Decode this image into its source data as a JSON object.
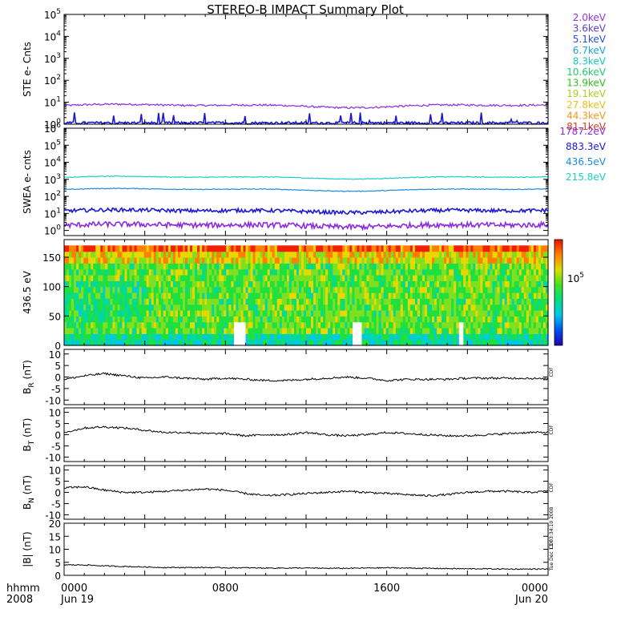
{
  "title": "STEREO-B IMPACT Summary Plot",
  "footer": {
    "hhmm": "hhmm",
    "year": "2008"
  },
  "stamp": "Tue Dec 13 03:34:10 2008",
  "side_labels": [
    "CDF",
    "CDF",
    "CDF",
    "CDF"
  ],
  "colorbar": {
    "label": "10",
    "label_exp": "5"
  },
  "legend_ste": [
    {
      "text": "2.0keV",
      "color": "#9b30d8"
    },
    {
      "text": "3.6keV",
      "color": "#5a3fd0"
    },
    {
      "text": "5.1keV",
      "color": "#2850e0"
    },
    {
      "text": "6.7keV",
      "color": "#1aa0dc"
    },
    {
      "text": "8.3keV",
      "color": "#18c8c0"
    },
    {
      "text": "10.6keV",
      "color": "#20c870"
    },
    {
      "text": "13.9keV",
      "color": "#30c020"
    },
    {
      "text": "19.1keV",
      "color": "#a8d018"
    },
    {
      "text": "27.8keV",
      "color": "#e8c020"
    },
    {
      "text": "44.3keV",
      "color": "#f09818"
    },
    {
      "text": "81.1keV",
      "color": "#e03818"
    }
  ],
  "legend_swea": [
    {
      "text": "1787.2eV",
      "color": "#8a2be2"
    },
    {
      "text": "883.3eV",
      "color": "#1818d8"
    },
    {
      "text": "436.5eV",
      "color": "#1a8ae0"
    },
    {
      "text": "215.8eV",
      "color": "#18d0c8"
    }
  ],
  "chart_data": [
    {
      "type": "line",
      "panel": "STE",
      "ylabel": "STE e- Cnts",
      "yscale": "log",
      "ylim": [
        1,
        100000
      ],
      "yticks": [
        {
          "base": "10",
          "exp": "0",
          "v": 1
        },
        {
          "base": "10",
          "exp": "1",
          "v": 10
        },
        {
          "base": "10",
          "exp": "2",
          "v": 100
        },
        {
          "base": "10",
          "exp": "3",
          "v": 1000
        },
        {
          "base": "10",
          "exp": "4",
          "v": 10000
        },
        {
          "base": "10",
          "exp": "5",
          "v": 100000
        }
      ],
      "series": [
        {
          "name": "2.0keV",
          "color": "#8a2be2",
          "level": 7,
          "noise": 0.1
        },
        {
          "name": "3.6keV",
          "color": "#1818d8",
          "level": 1,
          "noise": 0.3,
          "spiky": true
        }
      ]
    },
    {
      "type": "line",
      "panel": "SWEA",
      "ylabel": "SWEA e- cnts",
      "yscale": "log",
      "ylim": [
        0.5,
        1000000
      ],
      "yticks": [
        {
          "base": "10",
          "exp": "0",
          "v": 1
        },
        {
          "base": "10",
          "exp": "1",
          "v": 10
        },
        {
          "base": "10",
          "exp": "2",
          "v": 100
        },
        {
          "base": "10",
          "exp": "3",
          "v": 1000
        },
        {
          "base": "10",
          "exp": "4",
          "v": 10000
        },
        {
          "base": "10",
          "exp": "5",
          "v": 100000
        },
        {
          "base": "10",
          "exp": "6",
          "v": 1000000
        }
      ],
      "series": [
        {
          "name": "215.8eV",
          "color": "#18d0c8",
          "level": 1300,
          "noise": 0.05
        },
        {
          "name": "436.5eV",
          "color": "#1a8ae0",
          "level": 250,
          "noise": 0.05
        },
        {
          "name": "883.3eV",
          "color": "#1818d8",
          "level": 14,
          "noise": 0.25
        },
        {
          "name": "1787.2eV",
          "color": "#8a2be2",
          "level": 2,
          "noise": 0.35
        }
      ]
    },
    {
      "type": "heatmap",
      "panel": "pitch-angle",
      "ylabel": "436.5 eV",
      "ylim": [
        0,
        180
      ],
      "yticks": [
        0,
        50,
        100,
        150
      ]
    },
    {
      "type": "line",
      "panel": "BR",
      "ylabel": "B",
      "ylabel_sub": "R",
      "ylabel_unit": "(nT)",
      "ylim": [
        -12,
        12
      ],
      "yticks": [
        -10,
        -5,
        0,
        5,
        10
      ],
      "x": [
        0,
        1,
        2,
        3,
        4,
        5,
        6,
        7,
        8,
        9,
        10,
        11,
        12,
        13,
        14,
        15,
        16,
        17,
        18,
        19,
        20,
        21,
        22,
        23,
        24
      ],
      "y": [
        -1,
        0.5,
        1.5,
        0.5,
        -0.5,
        0,
        -0.5,
        -1,
        -0.5,
        -1,
        -1.5,
        -1.5,
        -1,
        -0.5,
        0,
        -0.5,
        -1.5,
        -1,
        -1,
        -1,
        -0.5,
        -0.5,
        -0.5,
        -0.5,
        -1
      ]
    },
    {
      "type": "line",
      "panel": "BT",
      "ylabel": "B",
      "ylabel_sub": "T",
      "ylabel_unit": "(nT)",
      "ylim": [
        -12,
        12
      ],
      "yticks": [
        -10,
        -5,
        0,
        5,
        10
      ],
      "x": [
        0,
        1,
        2,
        3,
        4,
        5,
        6,
        7,
        8,
        9,
        10,
        11,
        12,
        13,
        14,
        15,
        16,
        17,
        18,
        19,
        20,
        21,
        22,
        23,
        24
      ],
      "y": [
        1,
        3,
        3.5,
        3,
        2,
        1,
        1,
        0.5,
        0.5,
        -0.5,
        0,
        0,
        1,
        0,
        -0.5,
        0,
        1,
        0.5,
        0,
        -0.5,
        -0.5,
        0,
        0.5,
        1,
        1
      ]
    },
    {
      "type": "line",
      "panel": "BN",
      "ylabel": "B",
      "ylabel_sub": "N",
      "ylabel_unit": "(nT)",
      "ylim": [
        -12,
        12
      ],
      "yticks": [
        -10,
        -5,
        0,
        5,
        10
      ],
      "x": [
        0,
        1,
        2,
        3,
        4,
        5,
        6,
        7,
        8,
        9,
        10,
        11,
        12,
        13,
        14,
        15,
        16,
        17,
        18,
        19,
        20,
        21,
        22,
        23,
        24
      ],
      "y": [
        2,
        2.5,
        1,
        0,
        0,
        0.5,
        1,
        1.5,
        1,
        -0.5,
        -1.5,
        -1,
        -0.5,
        0,
        0.5,
        0,
        -0.5,
        -1,
        -1.5,
        -1,
        0,
        0.5,
        0.5,
        0,
        0.5
      ]
    },
    {
      "type": "line",
      "panel": "Bmag",
      "ylabel": "|B|",
      "ylabel_unit": "(nT)",
      "ylim": [
        0,
        20
      ],
      "yticks": [
        0,
        5,
        10,
        15,
        20
      ],
      "x": [
        0,
        1,
        2,
        3,
        4,
        5,
        6,
        7,
        8,
        9,
        10,
        11,
        12,
        13,
        14,
        15,
        16,
        17,
        18,
        19,
        20,
        21,
        22,
        23,
        24
      ],
      "y": [
        4,
        4,
        3.6,
        3.4,
        3.2,
        3,
        3,
        3,
        2.9,
        2.9,
        2.8,
        2.8,
        2.8,
        2.7,
        2.7,
        2.8,
        2.9,
        2.8,
        2.7,
        2.6,
        2.5,
        2.5,
        2.4,
        2.4,
        2.4
      ]
    }
  ],
  "xaxis": {
    "xlim": [
      0,
      24
    ],
    "ticks": [
      {
        "v": 0,
        "line1": "0000",
        "line2": "Jun 19"
      },
      {
        "v": 8,
        "line1": "0800",
        "line2": ""
      },
      {
        "v": 16,
        "line1": "1600",
        "line2": ""
      },
      {
        "v": 24,
        "line1": "0000",
        "line2": "Jun 20"
      }
    ]
  }
}
